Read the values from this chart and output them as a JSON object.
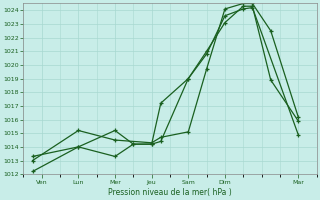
{
  "xlabel": "Pression niveau de la mer( hPa )",
  "bg_color": "#c8ede8",
  "grid_color": "#a8d8d0",
  "line_color": "#1a6020",
  "ylim": [
    1012,
    1024.5
  ],
  "ytick_min": 1012,
  "ytick_max": 1024,
  "xlim": [
    0,
    16
  ],
  "day_ticks": [
    1,
    3,
    5,
    7,
    9,
    11,
    15
  ],
  "day_labels": [
    "Ven",
    "Lun",
    "Mer",
    "Jeu",
    "Sam",
    "Dim",
    "Mar"
  ],
  "series1_x": [
    0.5,
    3,
    5,
    6,
    7,
    7.5,
    9,
    10,
    11,
    12,
    12.5,
    15
  ],
  "series1_y": [
    1012.2,
    1014.0,
    1015.2,
    1014.2,
    1014.2,
    1014.4,
    1019.0,
    1020.8,
    1023.6,
    1024.1,
    1024.2,
    1014.9
  ],
  "series2_x": [
    0.5,
    3,
    5,
    6,
    7,
    7.5,
    9,
    10,
    11,
    12,
    12.5,
    13.5,
    15
  ],
  "series2_y": [
    1013.3,
    1014.0,
    1013.3,
    1014.2,
    1014.2,
    1017.2,
    1019.0,
    1021.0,
    1023.1,
    1024.3,
    1024.3,
    1018.9,
    1015.9
  ],
  "series3_x": [
    0.5,
    3,
    5,
    7,
    7.5,
    9,
    10,
    11,
    12,
    12.5,
    13.5,
    15
  ],
  "series3_y": [
    1013.0,
    1015.2,
    1014.5,
    1014.3,
    1014.7,
    1015.1,
    1019.7,
    1024.1,
    1024.5,
    1024.5,
    1022.5,
    1016.2
  ]
}
